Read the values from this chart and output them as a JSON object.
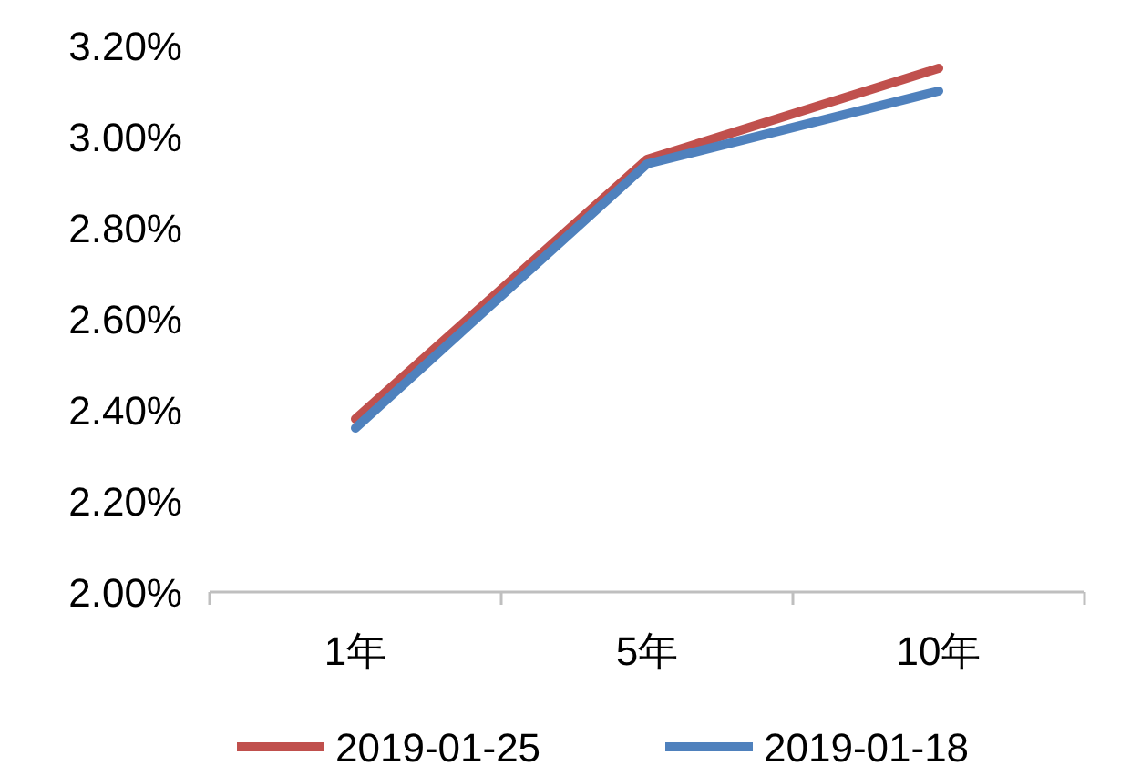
{
  "chart_data": {
    "type": "line",
    "categories": [
      "1年",
      "5年",
      "10年"
    ],
    "series": [
      {
        "name": "2019-01-25",
        "color": "#c0504d",
        "values": [
          2.38,
          2.95,
          3.15
        ]
      },
      {
        "name": "2019-01-18",
        "color": "#4f81bd",
        "values": [
          2.36,
          2.94,
          3.1
        ]
      }
    ],
    "ylim": [
      2.0,
      3.2
    ],
    "yticks": [
      {
        "value": 2.0,
        "label": "2.00%"
      },
      {
        "value": 2.2,
        "label": "2.20%"
      },
      {
        "value": 2.4,
        "label": "2.40%"
      },
      {
        "value": 2.6,
        "label": "2.60%"
      },
      {
        "value": 2.8,
        "label": "2.80%"
      },
      {
        "value": 3.0,
        "label": "3.00%"
      },
      {
        "value": 3.2,
        "label": "3.20%"
      }
    ],
    "legend": "bottom"
  }
}
